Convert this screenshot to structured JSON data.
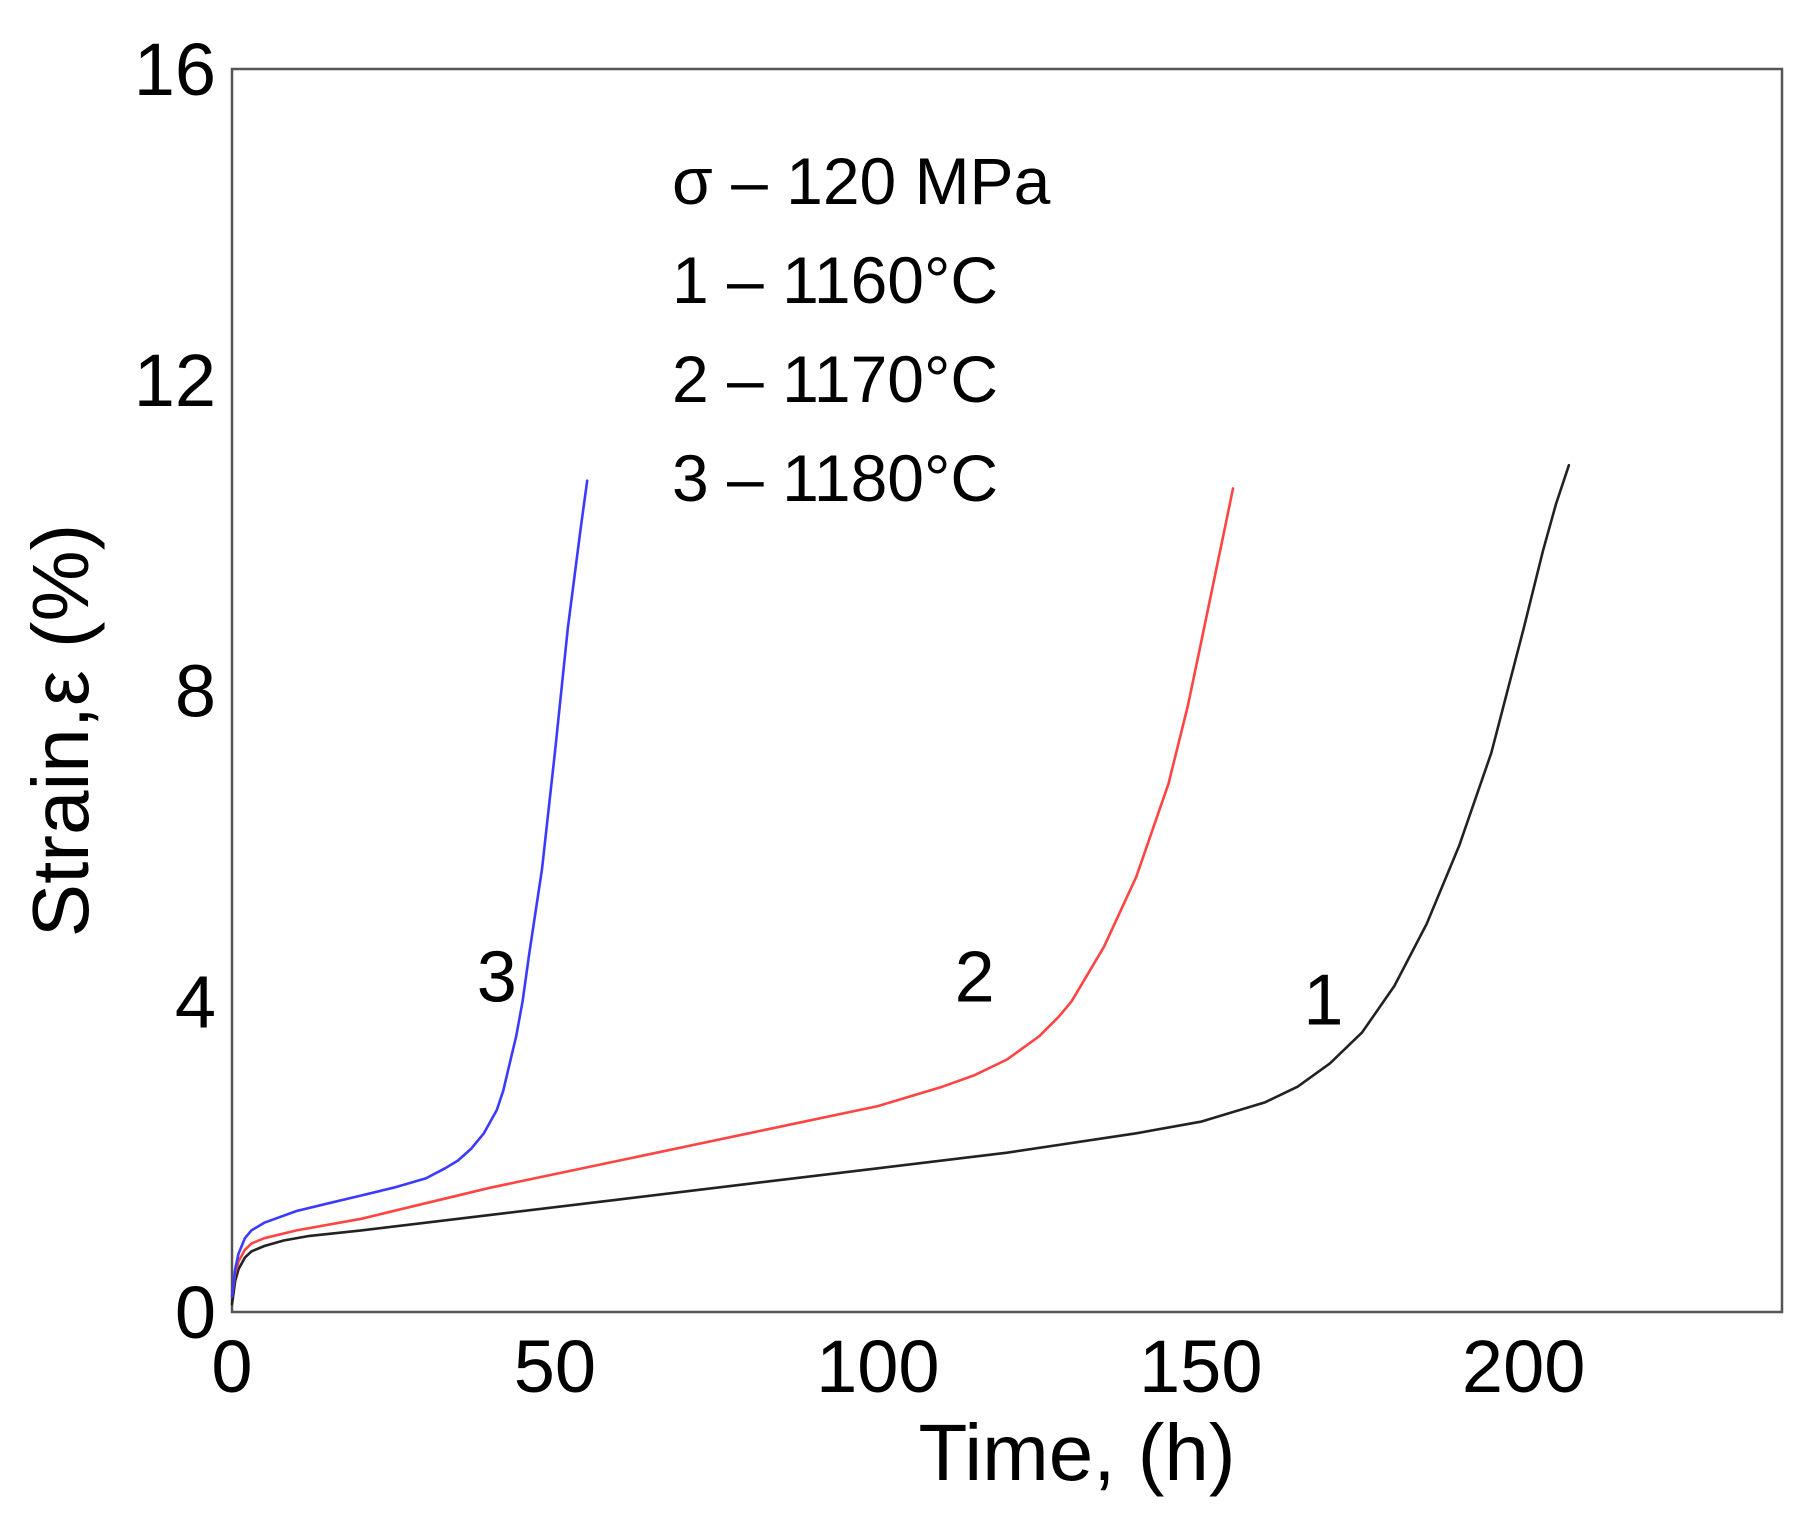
{
  "chart_data": {
    "type": "line",
    "title": "",
    "xlabel": "Time, (h)",
    "ylabel": "Strain,ε (%)",
    "xlim": [
      0,
      240
    ],
    "ylim": [
      0,
      16
    ],
    "xticks": [
      0,
      50,
      100,
      150,
      200
    ],
    "xtick_labels": [
      "0",
      "50",
      "100",
      "150",
      "200"
    ],
    "yticks": [
      0,
      4,
      8,
      12,
      16
    ],
    "ytick_labels": [
      "0",
      "4",
      "8",
      "12",
      "16"
    ],
    "grid": false,
    "legend_position": "top-center",
    "legend_lines": [
      "σ – 120 MPa",
      "1 – 1160°C",
      "2 – 1170°C",
      "3 – 1180°C"
    ],
    "series": [
      {
        "name": "1",
        "label": "1",
        "color": "#222222",
        "x": [
          0,
          0.5,
          1,
          2,
          3,
          5,
          8,
          12,
          20,
          40,
          60,
          80,
          100,
          120,
          140,
          150,
          160,
          165,
          170,
          175,
          180,
          185,
          190,
          195,
          200,
          203,
          205,
          207
        ],
        "y": [
          0.1,
          0.4,
          0.55,
          0.7,
          0.78,
          0.85,
          0.92,
          0.98,
          1.05,
          1.25,
          1.45,
          1.65,
          1.85,
          2.05,
          2.3,
          2.45,
          2.7,
          2.9,
          3.2,
          3.6,
          4.2,
          5.0,
          6.0,
          7.2,
          8.8,
          9.8,
          10.4,
          10.9
        ]
      },
      {
        "name": "2",
        "label": "2",
        "color": "#ff4444",
        "x": [
          0,
          0.5,
          1,
          2,
          3,
          5,
          10,
          20,
          30,
          40,
          60,
          80,
          100,
          110,
          115,
          120,
          125,
          128,
          130,
          135,
          140,
          145,
          148,
          150,
          152,
          154,
          155
        ],
        "y": [
          0.2,
          0.5,
          0.65,
          0.8,
          0.88,
          0.95,
          1.05,
          1.2,
          1.4,
          1.6,
          1.95,
          2.3,
          2.65,
          2.9,
          3.05,
          3.25,
          3.55,
          3.8,
          4.0,
          4.7,
          5.6,
          6.8,
          7.8,
          8.6,
          9.4,
          10.2,
          10.6
        ]
      },
      {
        "name": "3",
        "label": "3",
        "color": "#3b3bff",
        "x": [
          0,
          0.5,
          1,
          2,
          3,
          5,
          10,
          15,
          20,
          25,
          30,
          33,
          35,
          37,
          39,
          41,
          42,
          43,
          44,
          45,
          46,
          48,
          50,
          52,
          54,
          55
        ],
        "y": [
          0.2,
          0.55,
          0.75,
          0.95,
          1.05,
          1.15,
          1.3,
          1.4,
          1.5,
          1.6,
          1.72,
          1.85,
          1.95,
          2.1,
          2.3,
          2.6,
          2.85,
          3.2,
          3.55,
          4.0,
          4.6,
          5.7,
          7.2,
          8.8,
          10.1,
          10.7
        ]
      }
    ],
    "series_label_positions": [
      {
        "series": "1",
        "x": 169,
        "y": 3.7
      },
      {
        "series": "2",
        "x": 115,
        "y": 4.0
      },
      {
        "series": "3",
        "x": 41,
        "y": 4.0
      }
    ]
  }
}
